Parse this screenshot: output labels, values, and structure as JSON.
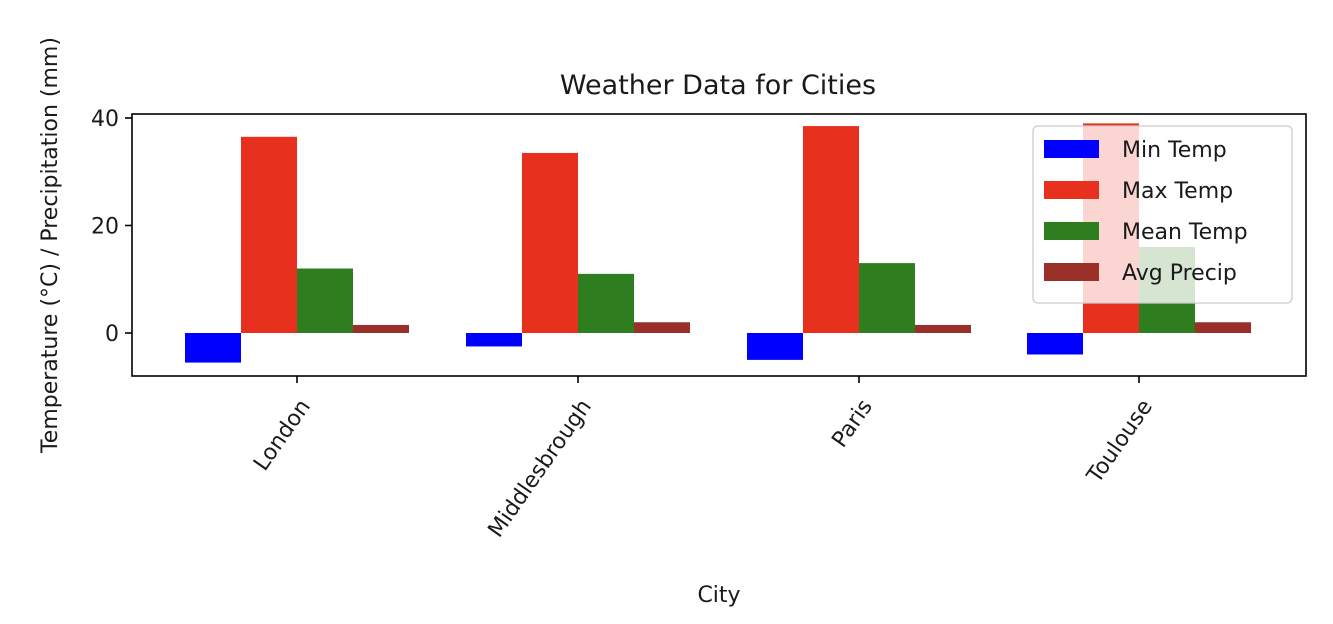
{
  "chart_data": {
    "type": "bar",
    "title": "Weather Data for Cities",
    "xlabel": "City",
    "ylabel": "Temperature (°C) / Precipitation (mm)",
    "categories": [
      "London",
      "Middlesbrough",
      "Paris",
      "Toulouse"
    ],
    "series": [
      {
        "name": "Min Temp",
        "color": "#0000ff",
        "values": [
          -5.5,
          -2.5,
          -5.0,
          -4.0
        ]
      },
      {
        "name": "Max Temp",
        "color": "#e8301e",
        "values": [
          36.5,
          33.5,
          38.5,
          39.0
        ]
      },
      {
        "name": "Mean Temp",
        "color": "#2e7d1e",
        "values": [
          12.0,
          11.0,
          13.0,
          16.0
        ]
      },
      {
        "name": "Avg Precip",
        "color": "#9b2f2a",
        "values": [
          1.5,
          2.0,
          1.5,
          2.0
        ]
      }
    ],
    "ylim": [
      -8,
      41
    ],
    "yticks": [
      0,
      20,
      40
    ],
    "grid": false,
    "legend": "top-right",
    "xtick_rotation": -55
  }
}
